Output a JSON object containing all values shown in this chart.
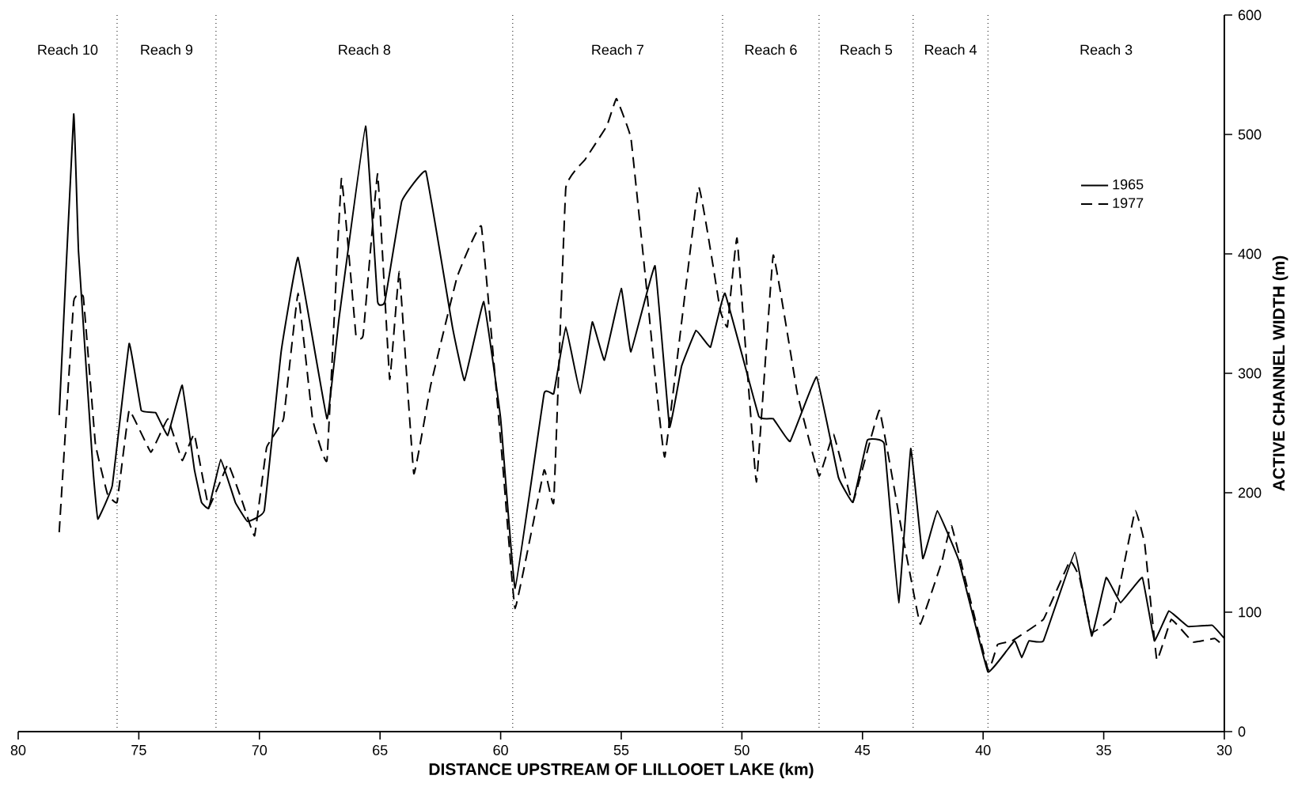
{
  "chart_data": {
    "type": "line",
    "xlabel": "DISTANCE UPSTREAM OF LILLOOET LAKE (km)",
    "ylabel": "ACTIVE CHANNEL WIDTH (m)",
    "xlim": [
      80,
      30
    ],
    "xticks": [
      80,
      75,
      70,
      65,
      60,
      55,
      50,
      45,
      40,
      35,
      30
    ],
    "ylim": [
      0,
      600
    ],
    "yticks": [
      0,
      100,
      200,
      300,
      400,
      500,
      600
    ],
    "grid": false,
    "legend": "top right",
    "marker": "none",
    "series": [
      {
        "name": "1965",
        "color": "#000000",
        "line_style": "solid",
        "x": [
          78.3,
          77.7,
          77.5,
          76.9,
          76.7,
          76.1,
          75.4,
          74.9,
          74.3,
          73.8,
          73.2,
          72.7,
          72.4,
          72.1,
          71.6,
          71.0,
          70.5,
          69.8,
          69.1,
          68.4,
          67.2,
          66.7,
          65.6,
          65.1,
          64.8,
          64.1,
          63.1,
          62.0,
          61.5,
          60.7,
          60.0,
          59.4,
          58.2,
          57.8,
          57.3,
          56.7,
          56.2,
          55.7,
          55.0,
          54.6,
          53.6,
          53.0,
          52.5,
          51.9,
          51.3,
          50.7,
          49.3,
          48.7,
          48.0,
          46.9,
          46.0,
          45.4,
          44.8,
          44.1,
          43.5,
          43.0,
          42.5,
          41.9,
          41.0,
          39.8,
          38.7,
          38.4,
          38.1,
          37.5,
          36.2,
          35.5,
          34.9,
          34.3,
          33.4,
          32.9,
          32.3,
          31.5,
          30.5,
          30.0
        ],
        "values": [
          265,
          517,
          402,
          220,
          178,
          206,
          325,
          269,
          267,
          248,
          290,
          220,
          192,
          187,
          228,
          192,
          176,
          185,
          318,
          397,
          262,
          346,
          507,
          360,
          360,
          444,
          469,
          339,
          294,
          360,
          262,
          120,
          283,
          283,
          339,
          283,
          343,
          311,
          371,
          318,
          390,
          255,
          306,
          336,
          322,
          367,
          264,
          262,
          243,
          297,
          213,
          192,
          244,
          241,
          108,
          237,
          145,
          185,
          143,
          50,
          76,
          62,
          76,
          76,
          150,
          80,
          129,
          108,
          129,
          76,
          101,
          88,
          89,
          78
        ]
      },
      {
        "name": "1977",
        "color": "#000000",
        "line_style": "dashed",
        "x": [
          78.3,
          77.7,
          77.3,
          76.8,
          76.3,
          75.9,
          75.4,
          74.5,
          73.8,
          73.2,
          72.7,
          72.1,
          71.3,
          70.7,
          70.2,
          69.7,
          69.0,
          68.4,
          67.8,
          67.2,
          66.6,
          66.0,
          65.7,
          65.1,
          64.6,
          64.2,
          63.6,
          62.9,
          61.8,
          60.8,
          59.9,
          59.4,
          58.2,
          57.8,
          57.3,
          56.5,
          55.6,
          55.2,
          54.6,
          54.0,
          53.2,
          51.8,
          50.9,
          50.6,
          50.2,
          49.4,
          48.7,
          47.7,
          46.8,
          46.2,
          45.4,
          44.3,
          43.4,
          43.0,
          42.6,
          41.7,
          41.3,
          39.8,
          39.4,
          38.8,
          37.5,
          36.4,
          36.0,
          35.5,
          34.6,
          33.7,
          33.3,
          32.8,
          32.2,
          31.3,
          30.4,
          30.0
        ],
        "values": [
          167,
          360,
          364,
          241,
          199,
          192,
          269,
          234,
          262,
          227,
          249,
          188,
          224,
          192,
          164,
          238,
          262,
          367,
          262,
          227,
          463,
          332,
          332,
          467,
          295,
          385,
          216,
          290,
          381,
          423,
          220,
          103,
          219,
          192,
          455,
          479,
          507,
          530,
          497,
          381,
          230,
          456,
          353,
          339,
          413,
          209,
          399,
          283,
          214,
          249,
          192,
          269,
          171,
          129,
          90,
          143,
          172,
          52,
          73,
          76,
          94,
          143,
          129,
          83,
          97,
          185,
          157,
          60,
          94,
          75,
          78,
          71
        ]
      }
    ],
    "ref_lines": [
      {
        "axis": "x",
        "value": 75.9,
        "line_style": "dotted",
        "color": "#000000"
      },
      {
        "axis": "x",
        "value": 71.8,
        "line_style": "dotted",
        "color": "#000000"
      },
      {
        "axis": "x",
        "value": 59.5,
        "line_style": "dotted",
        "color": "#000000"
      },
      {
        "axis": "x",
        "value": 50.8,
        "line_style": "dotted",
        "color": "#000000"
      },
      {
        "axis": "x",
        "value": 46.8,
        "line_style": "dotted",
        "color": "#000000"
      },
      {
        "axis": "x",
        "value": 42.9,
        "line_style": "dotted",
        "color": "#000000"
      },
      {
        "axis": "x",
        "value": 39.8,
        "line_style": "dotted",
        "color": "#000000"
      }
    ],
    "annotations": [
      "Reach 10",
      "Reach 9",
      "Reach 8",
      "Reach 7",
      "Reach 6",
      "Reach 5",
      "Reach 4",
      "Reach 3"
    ]
  }
}
